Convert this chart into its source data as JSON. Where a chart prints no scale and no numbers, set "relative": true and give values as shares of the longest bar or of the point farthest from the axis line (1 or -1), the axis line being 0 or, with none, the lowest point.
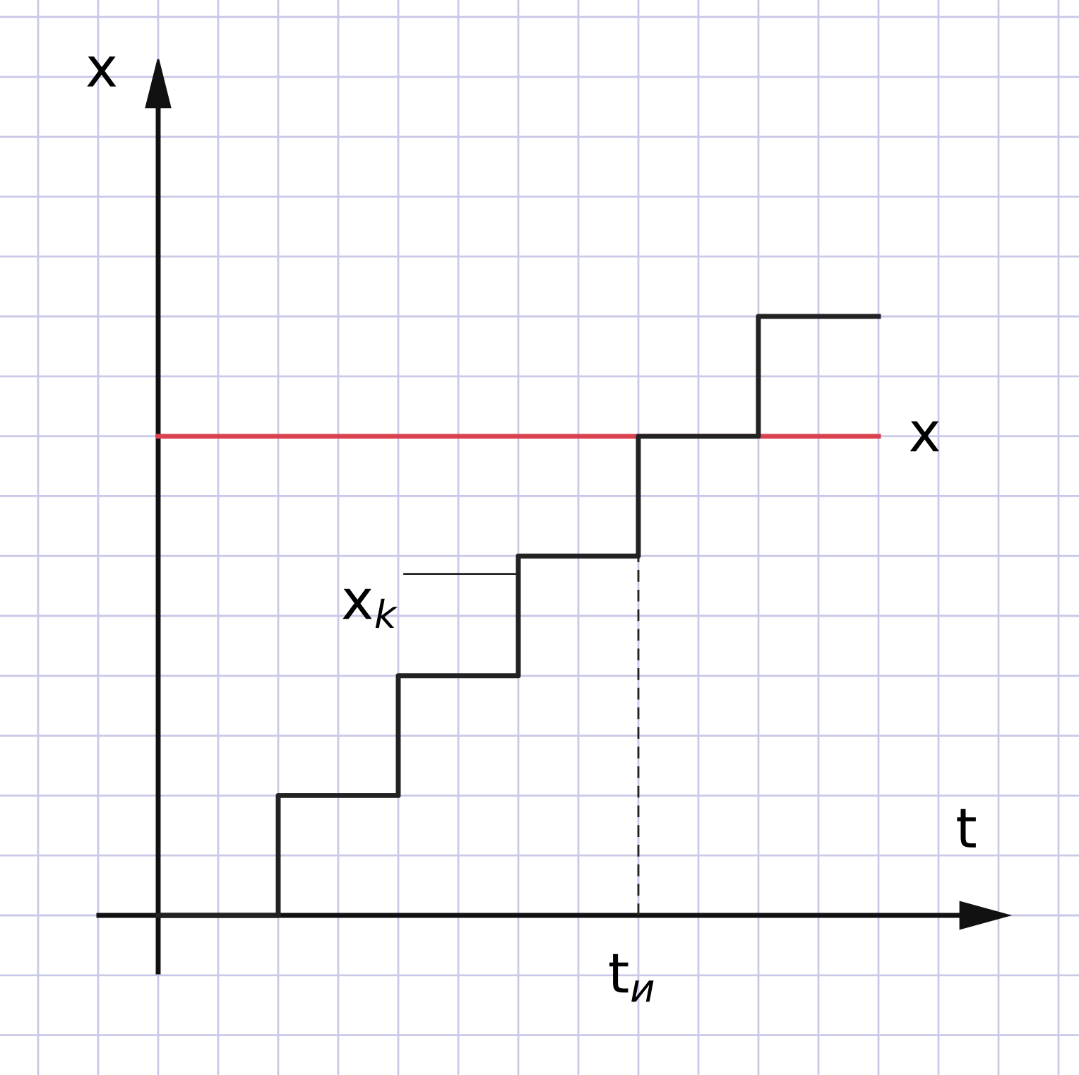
{
  "chart_data": {
    "type": "step",
    "relative": true,
    "xlabel": "t",
    "ylabel": "x",
    "categories": [
      null,
      null,
      null,
      null,
      null,
      null,
      null
    ],
    "series": [
      {
        "color": "#222222",
        "values": [
          0,
          0.2,
          0.4,
          0.6,
          0.8,
          1.0,
          1.0
        ]
      }
    ],
    "ref_lines": [
      {
        "axis": "y",
        "value": 0.8,
        "label": "x",
        "color": "#d9434f",
        "line_style": "solid"
      }
    ],
    "annotations": [
      "x$_{k}$",
      "t$_{и}$"
    ],
    "grid": true
  }
}
